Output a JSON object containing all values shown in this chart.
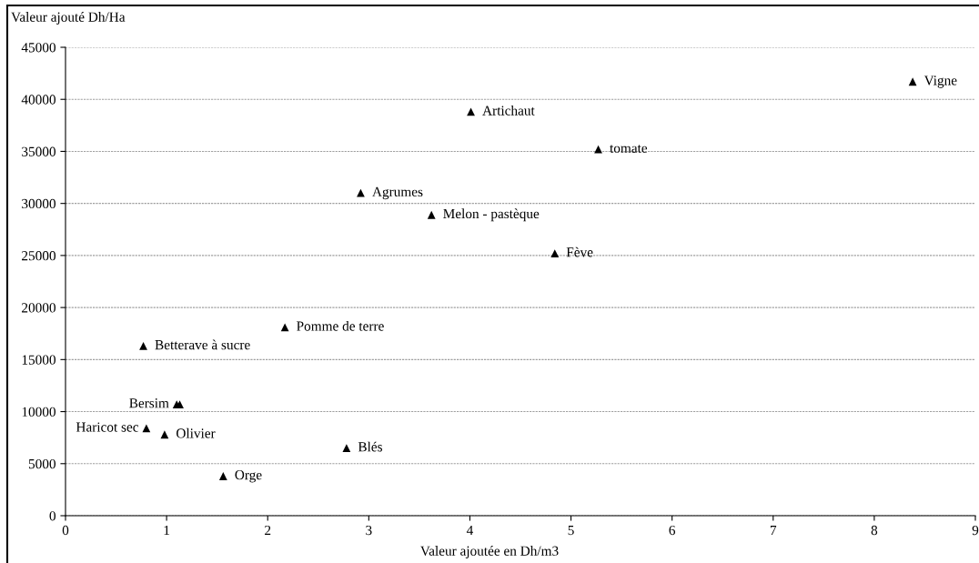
{
  "chart_data": {
    "type": "scatter",
    "xlabel": "Valeur ajoutée en Dh/m3",
    "ylabel": "Valeur ajouté Dh/Ha",
    "x": [
      8.38,
      4.01,
      5.27,
      2.92,
      3.62,
      4.84,
      2.17,
      0.77,
      1.1,
      1.13,
      0.8,
      0.98,
      2.78,
      1.56
    ],
    "values": [
      41700,
      38800,
      35200,
      31000,
      28900,
      25200,
      18100,
      16300,
      10700,
      10700,
      8400,
      7800,
      6500,
      3800
    ],
    "color": "#000000",
    "marker": "triangle",
    "xlim": [
      0,
      9
    ],
    "xticks": [
      0,
      1,
      2,
      3,
      4,
      5,
      6,
      7,
      8,
      9
    ],
    "ylim": [
      0,
      45000
    ],
    "yticks": [
      0,
      5000,
      10000,
      15000,
      20000,
      25000,
      30000,
      35000,
      40000,
      45000
    ],
    "grid": "y",
    "annotations": [
      {
        "text": "Vigne",
        "x": 8.38,
        "y": 41700
      },
      {
        "text": "Artichaut",
        "x": 4.01,
        "y": 38800
      },
      {
        "text": "tomate",
        "x": 5.27,
        "y": 35200
      },
      {
        "text": "Agrumes",
        "x": 2.92,
        "y": 31000
      },
      {
        "text": "Melon - pastèque",
        "x": 3.62,
        "y": 28900
      },
      {
        "text": "Fève",
        "x": 4.84,
        "y": 25200
      },
      {
        "text": "Pomme de terre",
        "x": 2.17,
        "y": 18100
      },
      {
        "text": "Betterave à sucre",
        "x": 0.77,
        "y": 16300
      },
      {
        "text": "Bersim",
        "x": 1.1,
        "y": 10700
      },
      {
        "text": "Haricot sec",
        "x": 0.8,
        "y": 8400
      },
      {
        "text": "Olivier",
        "x": 0.98,
        "y": 7800
      },
      {
        "text": "Blés",
        "x": 2.78,
        "y": 6500
      },
      {
        "text": "Orge",
        "x": 1.56,
        "y": 3800
      }
    ]
  }
}
